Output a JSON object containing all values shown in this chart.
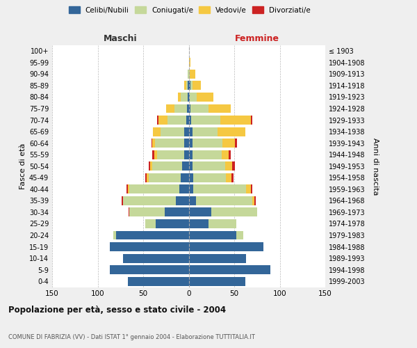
{
  "age_groups": [
    "0-4",
    "5-9",
    "10-14",
    "15-19",
    "20-24",
    "25-29",
    "30-34",
    "35-39",
    "40-44",
    "45-49",
    "50-54",
    "55-59",
    "60-64",
    "65-69",
    "70-74",
    "75-79",
    "80-84",
    "85-89",
    "90-94",
    "95-99",
    "100+"
  ],
  "birth_years": [
    "1999-2003",
    "1994-1998",
    "1989-1993",
    "1984-1988",
    "1979-1983",
    "1974-1978",
    "1969-1973",
    "1964-1968",
    "1959-1963",
    "1954-1958",
    "1949-1953",
    "1944-1948",
    "1939-1943",
    "1934-1938",
    "1929-1933",
    "1924-1928",
    "1919-1923",
    "1914-1918",
    "1909-1913",
    "1904-1908",
    "≤ 1903"
  ],
  "maschi": {
    "celibi": [
      67,
      87,
      72,
      87,
      80,
      36,
      26,
      14,
      10,
      9,
      7,
      5,
      5,
      5,
      3,
      2,
      1,
      1,
      0,
      0,
      0
    ],
    "coniugati": [
      0,
      0,
      0,
      0,
      3,
      12,
      39,
      58,
      55,
      35,
      33,
      30,
      32,
      26,
      20,
      14,
      8,
      2,
      1,
      0,
      0
    ],
    "vedovi": [
      0,
      0,
      0,
      0,
      0,
      0,
      0,
      0,
      2,
      2,
      2,
      3,
      3,
      8,
      10,
      9,
      3,
      2,
      0,
      0,
      0
    ],
    "divorziati": [
      0,
      0,
      0,
      0,
      0,
      0,
      1,
      2,
      1,
      2,
      2,
      2,
      1,
      0,
      2,
      0,
      0,
      0,
      0,
      0,
      0
    ]
  },
  "femmine": {
    "nubili": [
      62,
      90,
      63,
      82,
      52,
      22,
      25,
      8,
      5,
      5,
      4,
      4,
      4,
      4,
      3,
      2,
      1,
      2,
      0,
      0,
      0
    ],
    "coniugate": [
      0,
      0,
      0,
      0,
      8,
      30,
      50,
      62,
      58,
      36,
      36,
      32,
      33,
      28,
      32,
      20,
      8,
      2,
      1,
      0,
      0
    ],
    "vedove": [
      0,
      0,
      0,
      0,
      0,
      0,
      0,
      2,
      5,
      6,
      8,
      8,
      14,
      30,
      33,
      24,
      18,
      9,
      6,
      2,
      0
    ],
    "divorziate": [
      0,
      0,
      0,
      0,
      0,
      0,
      0,
      2,
      2,
      2,
      3,
      2,
      2,
      0,
      2,
      0,
      0,
      0,
      0,
      0,
      0
    ]
  },
  "colors": {
    "celibi": "#336699",
    "coniugati": "#C5D89A",
    "vedovi": "#F5C842",
    "divorziati": "#CC2222"
  },
  "title": "Popolazione per età, sesso e stato civile - 2004",
  "subtitle": "COMUNE DI FABRIZIA (VV) - Dati ISTAT 1° gennaio 2004 - Elaborazione TUTTITALIA.IT",
  "header_maschi": "Maschi",
  "header_femmine": "Femmine",
  "ylabel_left": "Fasce di età",
  "ylabel_right": "Anni di nascita",
  "xlim": 150,
  "legend_labels": [
    "Celibi/Nubili",
    "Coniugati/e",
    "Vedovi/e",
    "Divorziati/e"
  ],
  "bg_color": "#efefef",
  "plot_bg": "#ffffff"
}
